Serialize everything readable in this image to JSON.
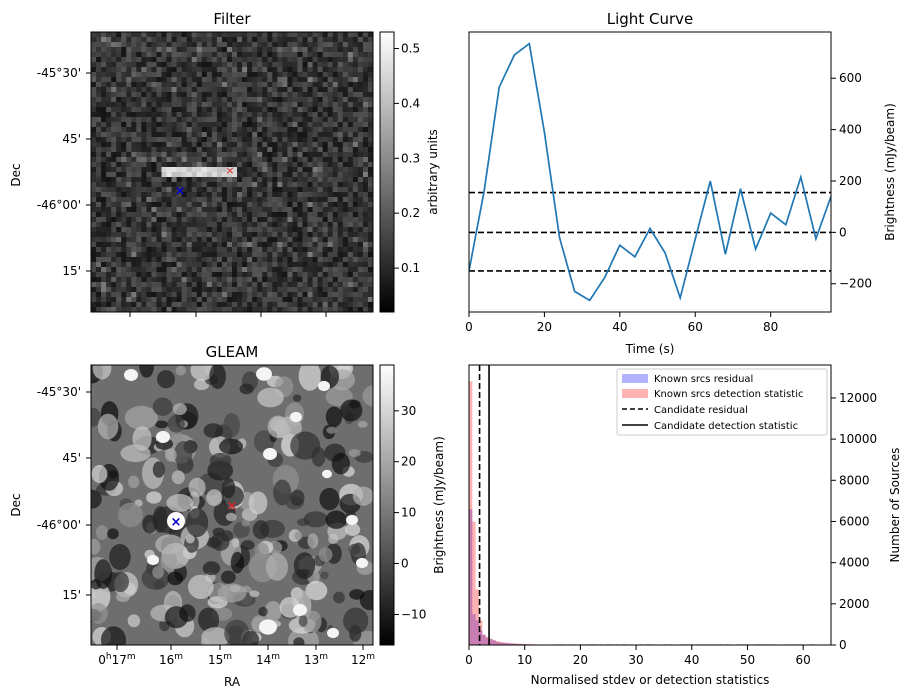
{
  "panels": {
    "filter": {
      "title": "Filter",
      "ylabel": "Dec",
      "dec_ticks": [
        "-45°30'",
        "45'",
        "-46°00'",
        "15'"
      ],
      "colorbar": {
        "label": "arbitrary units",
        "ticks": [
          "0.1",
          "0.2",
          "0.3",
          "0.4",
          "0.5"
        ],
        "range": [
          0.02,
          0.53
        ]
      }
    },
    "gleam": {
      "title": "GLEAM",
      "ylabel": "Dec",
      "xlabel": "RA",
      "dec_ticks": [
        "-45°30'",
        "45'",
        "-46°00'",
        "15'"
      ],
      "ra_ticks": [
        {
          "h": "0",
          "mark1": "h",
          "m": "17",
          "mark2": "m"
        },
        {
          "h": "",
          "mark1": "",
          "m": "16",
          "mark2": "m"
        },
        {
          "h": "",
          "mark1": "",
          "m": "15",
          "mark2": "m"
        },
        {
          "h": "",
          "mark1": "",
          "m": "14",
          "mark2": "m"
        },
        {
          "h": "",
          "mark1": "",
          "m": "13",
          "mark2": "m"
        },
        {
          "h": "",
          "mark1": "",
          "m": "12",
          "mark2": "m"
        }
      ],
      "colorbar": {
        "label": "Brightness (mJy/beam)",
        "ticks": [
          "−10",
          "0",
          "10",
          "20",
          "30"
        ],
        "range": [
          -16,
          39
        ]
      }
    },
    "markers": {
      "candidate_color": "#d62728",
      "known_color": "#0000cc"
    }
  },
  "chart_data": [
    {
      "type": "line",
      "title": "Light Curve",
      "xlabel": "Time (s)",
      "ylabel": "Brightness (mJy/beam)",
      "xlim": [
        0,
        96
      ],
      "ylim": [
        -310,
        780
      ],
      "x_ticks": [
        0,
        20,
        40,
        60,
        80
      ],
      "y_ticks": [
        -200,
        0,
        200,
        400,
        600
      ],
      "color": "#1f77b4",
      "x": [
        0,
        4,
        8,
        12,
        16,
        20,
        24,
        28,
        32,
        36,
        40,
        44,
        48,
        52,
        56,
        60,
        64,
        68,
        72,
        76,
        80,
        84,
        88,
        92,
        96
      ],
      "y": [
        -150,
        160,
        565,
        690,
        735,
        390,
        -20,
        -230,
        -265,
        -175,
        -50,
        -95,
        15,
        -80,
        -255,
        -25,
        200,
        -85,
        170,
        -65,
        75,
        30,
        215,
        -25,
        140
      ],
      "hlines": [
        155,
        0,
        -150
      ],
      "hline_style": "dashed"
    },
    {
      "type": "histogram",
      "xlabel": "Normalised stdev or detection statistics",
      "ylabel": "Number of Sources",
      "left_ylabel": "Brightness (mJy/beam)",
      "xlim": [
        0,
        65
      ],
      "ylim": [
        0,
        13600
      ],
      "x_ticks": [
        0,
        10,
        20,
        30,
        40,
        50,
        60
      ],
      "y_ticks": [
        0,
        2000,
        4000,
        6000,
        8000,
        10000,
        12000
      ],
      "bin_width": 0.6,
      "series": [
        {
          "name": "Known srcs residual",
          "color": "#0000ff",
          "alpha": 0.3,
          "values": [
            6600,
            1500,
            1200,
            700,
            500,
            350,
            300,
            220,
            160,
            120,
            100,
            80,
            70,
            60,
            50,
            45,
            40,
            35,
            30,
            25,
            20,
            18,
            15,
            12,
            10
          ]
        },
        {
          "name": "Known srcs detection statistic",
          "color": "#ff0000",
          "alpha": 0.3,
          "values": [
            12800,
            6000,
            2700,
            1200,
            500,
            400,
            300,
            250,
            180,
            150,
            130,
            110,
            95,
            80,
            70,
            60,
            50,
            45,
            40,
            35,
            30,
            25,
            20,
            18,
            15
          ]
        }
      ],
      "vlines": [
        {
          "name": "Candidate residual",
          "x": 1.9,
          "style": "dashed"
        },
        {
          "name": "Candidate detection statistic",
          "x": 3.6,
          "style": "solid"
        }
      ],
      "legend": "top-right"
    }
  ]
}
